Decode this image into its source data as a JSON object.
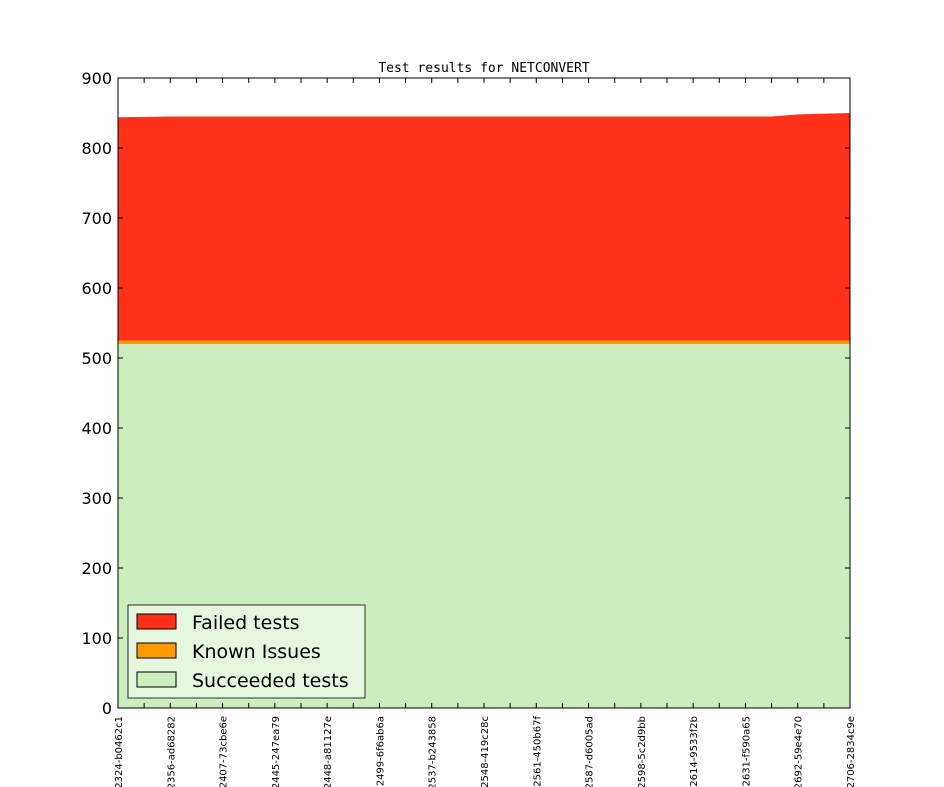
{
  "chart_data": {
    "type": "area",
    "title": "Test results for NETCONVERT",
    "xlabel": "",
    "ylabel": "",
    "ylim": [
      0,
      900
    ],
    "yticks": [
      0,
      100,
      200,
      300,
      400,
      500,
      600,
      700,
      800,
      900
    ],
    "grid": false,
    "legend_position": "lower-left",
    "x_labels": [
      "2324-b0462c1",
      "2356-ad68282",
      "2407-73cbe6e",
      "2445-247ea79",
      "2448-a81127e",
      "2499-6f6ab6a",
      "2537-b243858",
      "2548-419c28c",
      "2561-450b67f",
      "2587-d6005ad",
      "2598-5c2d9bb",
      "2614-9533f2b",
      "2631-f590a65",
      "2692-59e4e70",
      "2706-2834c9e"
    ],
    "x_positions": [
      0,
      2,
      4,
      6,
      8,
      10,
      12,
      14,
      16,
      18,
      20,
      22,
      24,
      26,
      28
    ],
    "x_range": [
      0,
      28
    ],
    "series": [
      {
        "name": "Succeeded tests",
        "color": "#cdedbe",
        "x": [
          0,
          2,
          25,
          26,
          28
        ],
        "values": [
          520,
          520,
          520,
          520,
          520
        ]
      },
      {
        "name": "Known Issues",
        "color": "#ff9900",
        "x": [
          0,
          2,
          25,
          26,
          28
        ],
        "values": [
          5,
          5,
          5,
          5,
          5
        ]
      },
      {
        "name": "Failed tests",
        "color": "#ff3118",
        "x": [
          0,
          2,
          25,
          26,
          28
        ],
        "values": [
          319,
          320,
          320,
          323,
          325
        ]
      }
    ],
    "legend": [
      "Failed tests",
      "Known Issues",
      "Succeeded tests"
    ]
  }
}
